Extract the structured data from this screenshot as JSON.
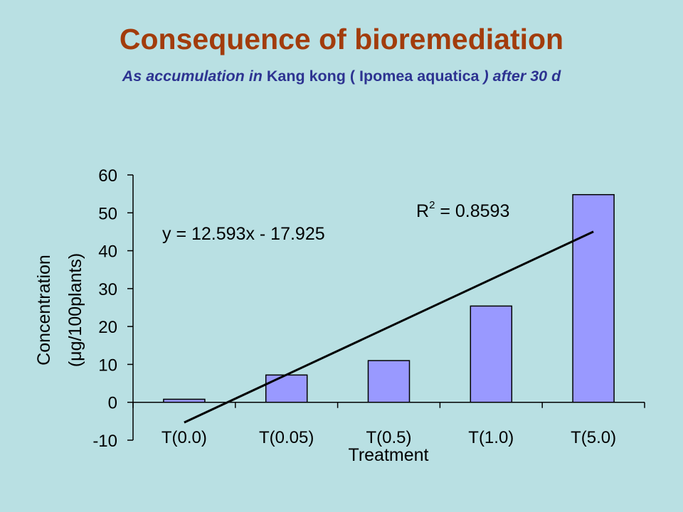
{
  "title": "Consequence of bioremediation",
  "subtitle": {
    "part1": "As accumulation  in ",
    "part2": "Kang kong ( Ipomea aquatica ",
    "part3": ") after 30 d"
  },
  "colors": {
    "background": "#b9e0e3",
    "title": "#a23c0c",
    "subtitle": "#2d3391",
    "bar": "#9999ff",
    "trendline": "#000000"
  },
  "chart_data": {
    "type": "bar",
    "categories": [
      "T(0.0)",
      "T(0.05)",
      "T(0.5)",
      "T(1.0)",
      "T(5.0)"
    ],
    "values": [
      0.8,
      7.2,
      11.0,
      25.4,
      54.8
    ],
    "xlabel": "Treatment",
    "ylabel_line1": "Concentration",
    "ylabel_line2": "(μg/100plants)",
    "ylim": [
      -10,
      60
    ],
    "yticks": [
      -10,
      0,
      10,
      20,
      30,
      40,
      50,
      60
    ],
    "grid": false,
    "legend": "none",
    "trendline": {
      "type": "linear",
      "slope": 12.593,
      "intercept": -17.925,
      "equation_label": "y = 12.593x - 17.925",
      "r2_prefix": "R",
      "r2_superscript": "2",
      "r2_value": " = 0.8593"
    }
  }
}
